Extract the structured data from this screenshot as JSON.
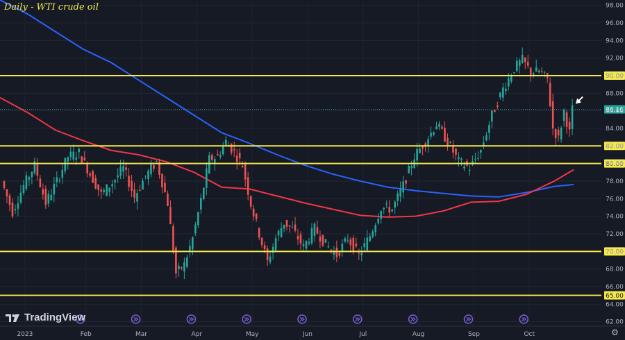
{
  "title": "Daily - WTI crude oil",
  "logo_text": "TradingView",
  "chart_data": {
    "type": "candlestick",
    "title": "Daily - WTI crude oil",
    "y_ticks": [
      "62.00",
      "64.00",
      "66.00",
      "68.00",
      "70.00",
      "72.00",
      "74.00",
      "76.00",
      "78.00",
      "80.00",
      "82.00",
      "84.00",
      "86.00",
      "88.00",
      "90.00",
      "92.00",
      "94.00",
      "96.00",
      "98.00"
    ],
    "ylim": [
      61.5,
      98.6
    ],
    "x_ticks": [
      {
        "label": "2023",
        "pos": 0.45
      },
      {
        "label": "Feb",
        "pos": 1.55
      },
      {
        "label": "Mar",
        "pos": 2.55
      },
      {
        "label": "Apr",
        "pos": 3.55
      },
      {
        "label": "May",
        "pos": 4.55
      },
      {
        "label": "Jun",
        "pos": 5.55
      },
      {
        "label": "Jul",
        "pos": 6.55
      },
      {
        "label": "Aug",
        "pos": 7.55
      },
      {
        "label": "Sep",
        "pos": 8.55
      },
      {
        "label": "Oct",
        "pos": 9.55
      }
    ],
    "xlim": [
      0,
      10.85
    ],
    "horizontal_levels": [
      {
        "label": "90.00",
        "value": 90.0
      },
      {
        "label": "82.00",
        "value": 82.0
      },
      {
        "label": "80.00",
        "value": 80.0
      },
      {
        "label": "70.00",
        "value": 70.0
      },
      {
        "label": "65.00",
        "value": 65.0
      }
    ],
    "current_price": {
      "label": "86.16",
      "value": 86.16
    },
    "closes": [
      [
        0.05,
        78.0
      ],
      [
        0.25,
        74.5
      ],
      [
        0.45,
        77.5
      ],
      [
        0.65,
        79.8
      ],
      [
        0.85,
        75.5
      ],
      [
        1.05,
        78.0
      ],
      [
        1.25,
        80.8
      ],
      [
        1.45,
        81.2
      ],
      [
        1.65,
        78.8
      ],
      [
        1.85,
        76.5
      ],
      [
        2.05,
        77.8
      ],
      [
        2.25,
        79.5
      ],
      [
        2.45,
        76.2
      ],
      [
        2.65,
        78.6
      ],
      [
        2.85,
        80.2
      ],
      [
        3.05,
        75.5
      ],
      [
        3.2,
        67.5
      ],
      [
        3.35,
        68.5
      ],
      [
        3.5,
        71.5
      ],
      [
        3.65,
        75.8
      ],
      [
        3.8,
        80.5
      ],
      [
        3.95,
        80.8
      ],
      [
        4.1,
        82.5
      ],
      [
        4.25,
        81.3
      ],
      [
        4.4,
        79.8
      ],
      [
        4.55,
        75.4
      ],
      [
        4.7,
        72.0
      ],
      [
        4.85,
        68.8
      ],
      [
        5.0,
        71.5
      ],
      [
        5.15,
        73.3
      ],
      [
        5.3,
        72.5
      ],
      [
        5.5,
        70.5
      ],
      [
        5.7,
        72.6
      ],
      [
        5.9,
        70.8
      ],
      [
        6.1,
        69.6
      ],
      [
        6.3,
        71.5
      ],
      [
        6.5,
        69.5
      ],
      [
        6.7,
        71.8
      ],
      [
        6.9,
        75.0
      ],
      [
        7.1,
        74.8
      ],
      [
        7.3,
        77.5
      ],
      [
        7.5,
        80.8
      ],
      [
        7.7,
        82.5
      ],
      [
        7.9,
        84.5
      ],
      [
        8.1,
        82.5
      ],
      [
        8.3,
        80.2
      ],
      [
        8.5,
        79.5
      ],
      [
        8.7,
        81.5
      ],
      [
        8.9,
        85.5
      ],
      [
        9.1,
        88.5
      ],
      [
        9.3,
        90.8
      ],
      [
        9.45,
        91.8
      ],
      [
        9.6,
        90.4
      ],
      [
        9.75,
        90.5
      ],
      [
        9.9,
        89.6
      ],
      [
        10.0,
        84.0
      ],
      [
        10.1,
        82.8
      ],
      [
        10.2,
        86.0
      ],
      [
        10.3,
        83.5
      ],
      [
        10.35,
        86.16
      ]
    ],
    "series": [
      {
        "type": "line",
        "color": "#2962ff",
        "points": [
          [
            0,
            98.6
          ],
          [
            0.5,
            97.0
          ],
          [
            1.0,
            95.0
          ],
          [
            1.5,
            93.0
          ],
          [
            2.0,
            91.5
          ],
          [
            2.5,
            89.5
          ],
          [
            3.0,
            87.5
          ],
          [
            3.5,
            85.5
          ],
          [
            4.0,
            83.5
          ],
          [
            4.5,
            82.3
          ],
          [
            5.0,
            81.0
          ],
          [
            5.5,
            79.8
          ],
          [
            6.0,
            78.8
          ],
          [
            6.5,
            78.0
          ],
          [
            7.0,
            77.3
          ],
          [
            7.5,
            76.9
          ],
          [
            8.0,
            76.6
          ],
          [
            8.5,
            76.3
          ],
          [
            9.0,
            76.2
          ],
          [
            9.5,
            76.7
          ],
          [
            10.0,
            77.4
          ],
          [
            10.35,
            77.6
          ]
        ]
      },
      {
        "type": "line",
        "color": "#f23645",
        "points": [
          [
            0,
            87.5
          ],
          [
            0.5,
            85.8
          ],
          [
            1.0,
            83.8
          ],
          [
            1.5,
            82.6
          ],
          [
            2.0,
            81.5
          ],
          [
            2.5,
            81.0
          ],
          [
            3.0,
            80.2
          ],
          [
            3.5,
            79.0
          ],
          [
            4.0,
            77.3
          ],
          [
            4.5,
            77.1
          ],
          [
            5.0,
            76.3
          ],
          [
            5.5,
            75.5
          ],
          [
            6.0,
            74.8
          ],
          [
            6.5,
            74.1
          ],
          [
            7.0,
            73.9
          ],
          [
            7.5,
            74.0
          ],
          [
            8.0,
            74.6
          ],
          [
            8.5,
            75.6
          ],
          [
            9.0,
            75.7
          ],
          [
            9.5,
            76.5
          ],
          [
            10.0,
            78.0
          ],
          [
            10.35,
            79.3
          ]
        ]
      }
    ]
  }
}
